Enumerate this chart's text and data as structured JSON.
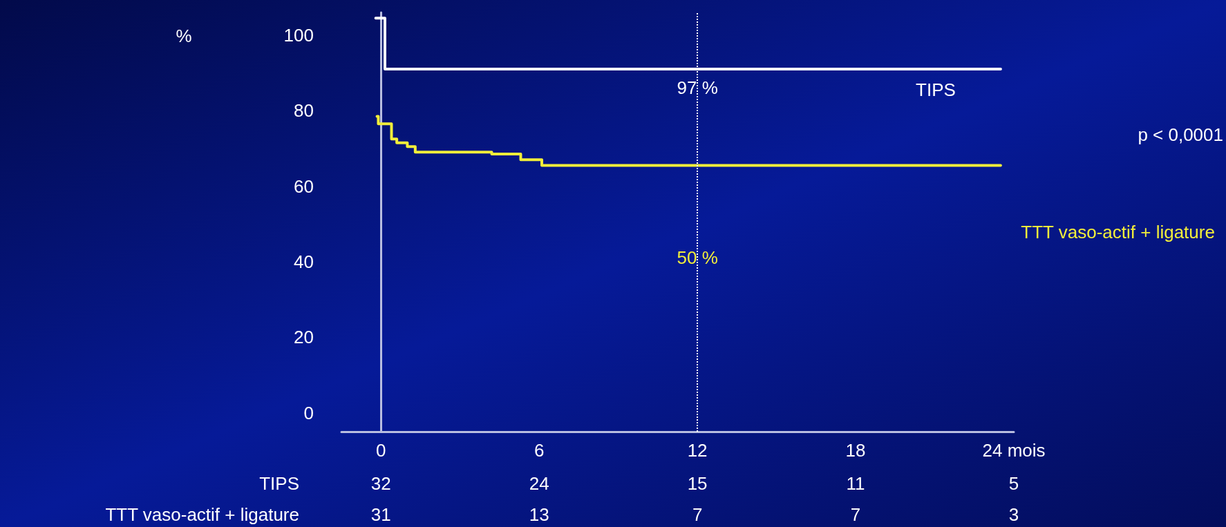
{
  "chart_data": {
    "type": "step",
    "xlim": [
      -1.5,
      24
    ],
    "xticks": [
      0,
      6,
      12,
      {
        "value": 18,
        "label": "18"
      },
      {
        "value": 24,
        "label": "24 mois"
      }
    ],
    "ylim": [
      -5,
      106
    ],
    "yticks": [
      0,
      20,
      40,
      60,
      80,
      100
    ],
    "series": [
      {
        "name": "TIPS",
        "color": "#ffffff",
        "x": [
          -0.2,
          0.15,
          23.5
        ],
        "values": [
          104.5,
          91,
          91
        ]
      },
      {
        "name": "TTT vaso-actif + ligature",
        "color": "#f2ee3a",
        "x": [
          -0.15,
          -0.1,
          0.4,
          0.6,
          1.0,
          1.3,
          4.2,
          5.3,
          6.1,
          23.5
        ],
        "values": [
          78.5,
          76.5,
          72.5,
          71.5,
          70.5,
          69,
          68.5,
          67,
          65.5,
          65.5
        ]
      }
    ],
    "ref_lines": [
      {
        "axis": "x",
        "value": 12,
        "color": "#ffffff",
        "line_style": "dotted"
      }
    ],
    "annotations": [
      {
        "text": "97 %",
        "x": 12,
        "y": 86
      },
      {
        "text": "50 %",
        "x": 12,
        "y": 41
      },
      "%",
      "p < 0,0001",
      "TIPS",
      "32",
      "24",
      "15",
      "11",
      "5",
      "TTT vaso-actif + ligature",
      "31",
      "13",
      "7",
      "7",
      "3"
    ],
    "grid": false,
    "legend": false,
    "marker": "none",
    "line_style": "solid"
  }
}
